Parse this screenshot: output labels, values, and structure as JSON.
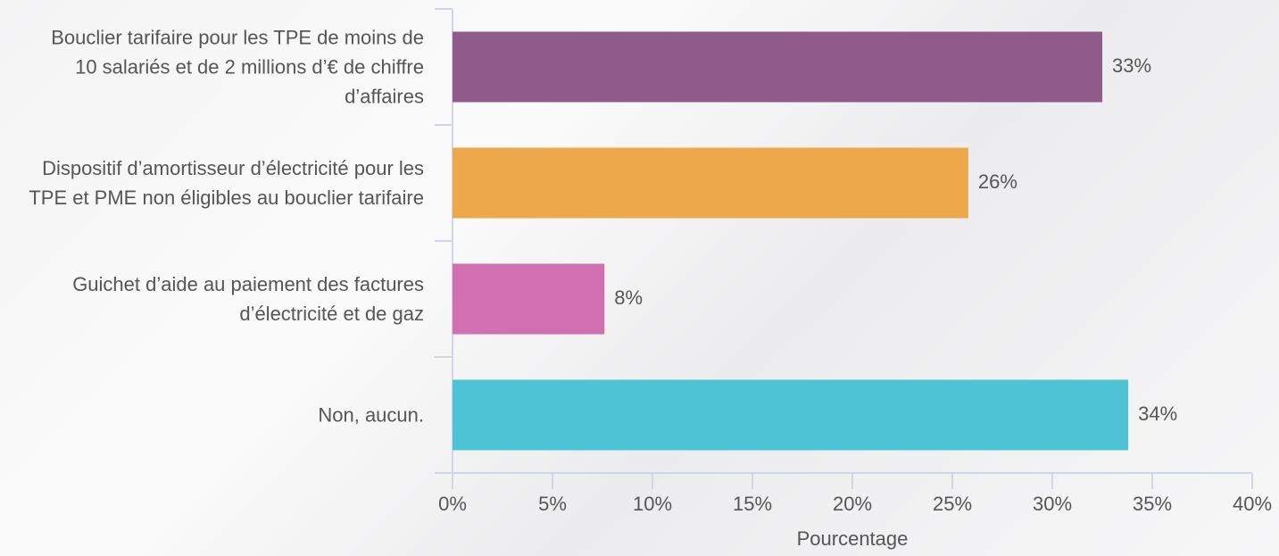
{
  "chart_data": {
    "type": "barh",
    "xlabel": "Pourcentage",
    "categories": [
      "Bouclier tarifaire pour les TPE de moins de 10 salariés et de 2 millions d’€ de chiffre d’affaires",
      "Dispositif d’amortisseur d’électricité pour les TPE et PME non éligibles au bouclier tarifaire",
      "Guichet d’aide au paiement des factures d’électricité et de gaz",
      "Non, aucun."
    ],
    "values": [
      32.5,
      25.8,
      7.6,
      33.8
    ],
    "value_labels": [
      "33%",
      "26%",
      "8%",
      "34%"
    ],
    "colors": [
      "#8e5b8a",
      "#eca84a",
      "#d26fb0",
      "#4fc3d6"
    ],
    "xlim": [
      0,
      40
    ],
    "xticks": [
      {
        "value": 0,
        "label": "0%"
      },
      {
        "value": 5,
        "label": "5%"
      },
      {
        "value": 10,
        "label": "10%"
      },
      {
        "value": 15,
        "label": "15%"
      },
      {
        "value": 20,
        "label": "20%"
      },
      {
        "value": 25,
        "label": "25%"
      },
      {
        "value": 30,
        "label": "30%"
      },
      {
        "value": 35,
        "label": "35%"
      },
      {
        "value": 40,
        "label": "40%"
      }
    ]
  }
}
